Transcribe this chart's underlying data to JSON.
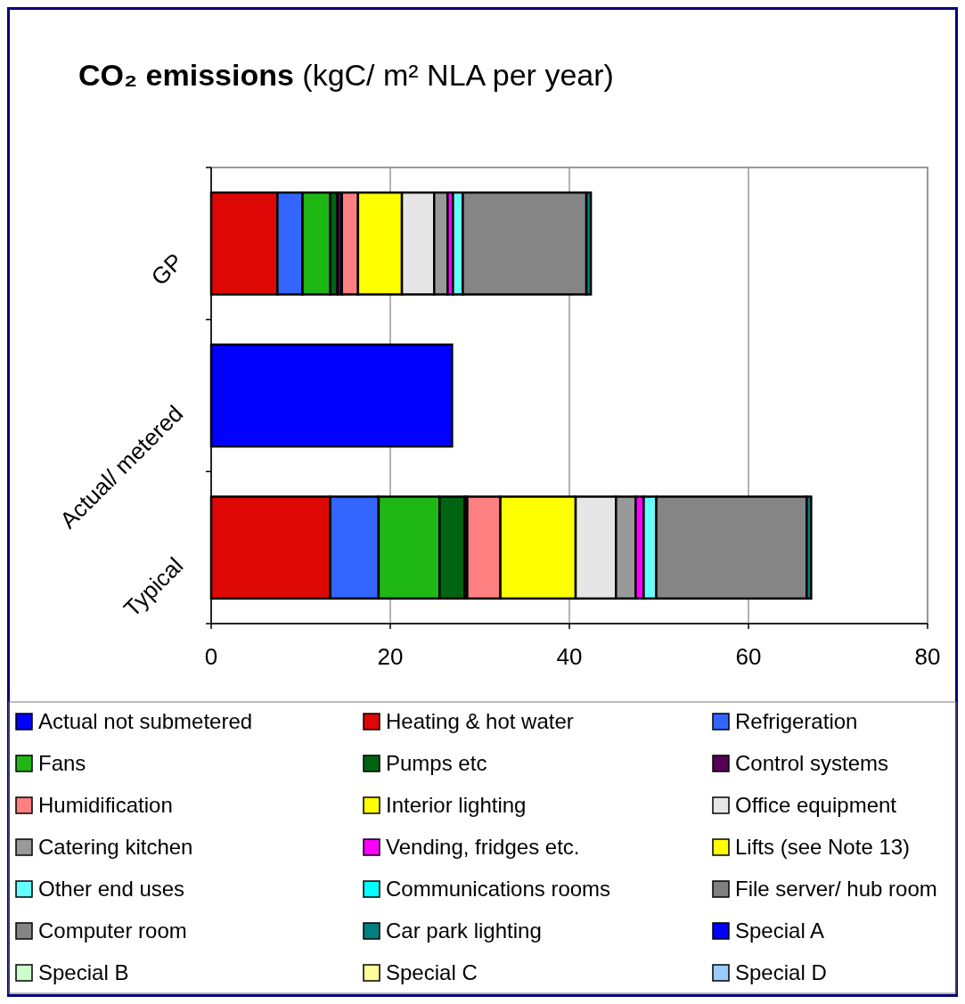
{
  "chart_data": {
    "type": "bar",
    "orientation": "horizontal",
    "stacked": true,
    "title": "CO₂ emissions (kgC/ m² NLA per year)",
    "categories": [
      "GP",
      "Actual/ metered",
      "Typical"
    ],
    "xlim": [
      0,
      80
    ],
    "xticks": [
      0,
      20,
      40,
      60,
      80
    ],
    "grid": "x",
    "legend": "bottom",
    "series": [
      {
        "name": "Actual not submetered",
        "color": "#0000ff",
        "values": [
          null,
          26.9,
          null
        ]
      },
      {
        "name": "Heating & hot water",
        "color": "#dd0806",
        "values": [
          7.4,
          null,
          13.3
        ]
      },
      {
        "name": "Refrigeration",
        "color": "#3366ff",
        "values": [
          2.8,
          null,
          5.4
        ]
      },
      {
        "name": "Fans",
        "color": "#1fb714",
        "values": [
          3.1,
          null,
          6.8
        ]
      },
      {
        "name": "Pumps etc",
        "color": "#006411",
        "values": [
          0.8,
          null,
          2.8
        ]
      },
      {
        "name": "Control systems",
        "color": "#550055",
        "values": [
          0.5,
          null,
          0.3
        ]
      },
      {
        "name": "Humidification",
        "color": "#ff8080",
        "values": [
          1.8,
          null,
          3.7
        ]
      },
      {
        "name": "Interior lighting",
        "color": "#ffff00",
        "values": [
          4.9,
          null,
          8.4
        ]
      },
      {
        "name": "Office equipment",
        "color": "#e6e6e6",
        "values": [
          3.6,
          null,
          4.5
        ]
      },
      {
        "name": "Catering kitchen",
        "color": "#999999",
        "values": [
          1.5,
          null,
          2.2
        ]
      },
      {
        "name": "Vending, fridges etc.",
        "color": "#ff00ff",
        "values": [
          0.6,
          null,
          0.9
        ]
      },
      {
        "name": "Lifts (see Note 13)",
        "color": "#ffff00",
        "values": [
          null,
          null,
          null
        ]
      },
      {
        "name": "Other end uses",
        "color": "#66ffff",
        "values": [
          1.1,
          null,
          1.4
        ]
      },
      {
        "name": "Communications rooms",
        "color": "#00ffff",
        "values": [
          null,
          null,
          null
        ]
      },
      {
        "name": "File server/ hub room",
        "color": "#808080",
        "values": [
          null,
          null,
          null
        ]
      },
      {
        "name": "Computer room",
        "color": "#858585",
        "values": [
          13.8,
          null,
          16.8
        ]
      },
      {
        "name": "Car park lighting",
        "color": "#008080",
        "values": [
          0.5,
          null,
          0.5
        ]
      },
      {
        "name": "Special A",
        "color": "#0000fe",
        "values": [
          null,
          null,
          null
        ]
      },
      {
        "name": "Special B",
        "color": "#ccffcc",
        "values": [
          null,
          null,
          null
        ]
      },
      {
        "name": "Special C",
        "color": "#ffff99",
        "values": [
          null,
          null,
          null
        ]
      },
      {
        "name": "Special D",
        "color": "#99ccff",
        "values": [
          null,
          null,
          null
        ]
      }
    ]
  }
}
